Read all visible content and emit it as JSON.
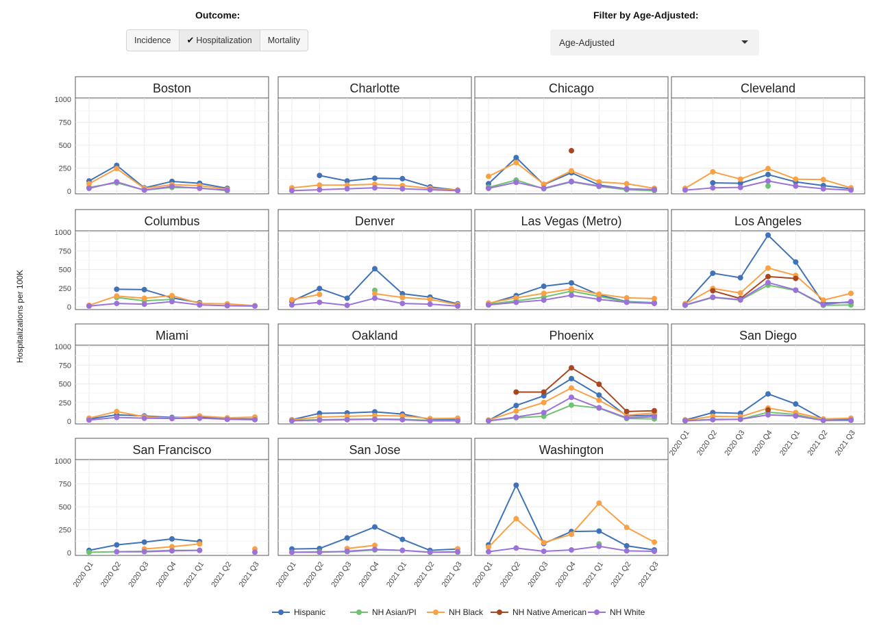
{
  "controls": {
    "outcome_label": "Outcome:",
    "outcome_options": [
      "Incidence",
      "Hospitalization",
      "Mortality"
    ],
    "outcome_selected": "Hospitalization",
    "check_icon": "✔",
    "filter_label": "Filter by Age-Adjusted:",
    "filter_value": "Age-Adjusted"
  },
  "chart_data": {
    "type": "line",
    "ylabel": "Hospitalizations per 100K",
    "ylim": [
      0,
      1000
    ],
    "yticks": [
      0,
      250,
      500,
      750,
      1000
    ],
    "x": [
      "2020 Q1",
      "2020 Q2",
      "2020 Q3",
      "2020 Q4",
      "2021 Q1",
      "2021 Q2",
      "2021 Q3"
    ],
    "grid": true,
    "legend_position": "bottom",
    "series_colors": {
      "Hispanic": "#3f72b8",
      "NH Asian/PI": "#6fc270",
      "NH Black": "#f9a144",
      "NH Native American": "#a8461f",
      "NH White": "#9a72d8"
    },
    "legend": [
      "Hispanic",
      "NH Asian/PI",
      "NH Black",
      "NH Native American",
      "NH White"
    ],
    "panels": [
      {
        "title": "Boston",
        "series": {
          "Hispanic": [
            110,
            280,
            35,
            105,
            85,
            30,
            null
          ],
          "NH Asian/PI": [
            40,
            90,
            10,
            40,
            35,
            5,
            null
          ],
          "NH Black": [
            80,
            245,
            30,
            70,
            60,
            20,
            null
          ],
          "NH Native American": [
            null,
            null,
            null,
            null,
            null,
            null,
            null
          ],
          "NH White": [
            30,
            100,
            10,
            50,
            30,
            10,
            null
          ]
        }
      },
      {
        "title": "Charlotte",
        "series": {
          "Hispanic": [
            null,
            170,
            110,
            140,
            135,
            45,
            10
          ],
          "NH Asian/PI": [
            null,
            null,
            null,
            null,
            null,
            null,
            null
          ],
          "NH Black": [
            35,
            65,
            65,
            75,
            60,
            30,
            10
          ],
          "NH Native American": [
            null,
            null,
            null,
            null,
            null,
            null,
            null
          ],
          "NH White": [
            5,
            15,
            25,
            35,
            25,
            15,
            5
          ]
        }
      },
      {
        "title": "Chicago",
        "series": {
          "Hispanic": [
            80,
            365,
            70,
            200,
            65,
            25,
            15
          ],
          "NH Asian/PI": [
            40,
            120,
            25,
            100,
            50,
            15,
            5
          ],
          "NH Black": [
            160,
            310,
            75,
            220,
            100,
            80,
            30
          ],
          "NH Native American": [
            null,
            null,
            null,
            440,
            null,
            null,
            null
          ],
          "NH White": [
            30,
            95,
            30,
            105,
            55,
            25,
            15
          ]
        }
      },
      {
        "title": "Cleveland",
        "series": {
          "Hispanic": [
            null,
            90,
            85,
            180,
            100,
            60,
            25
          ],
          "NH Asian/PI": [
            null,
            null,
            null,
            55,
            null,
            null,
            null
          ],
          "NH Black": [
            30,
            210,
            130,
            245,
            130,
            125,
            35
          ],
          "NH Native American": [
            null,
            null,
            null,
            null,
            null,
            null,
            null
          ],
          "NH White": [
            10,
            35,
            40,
            110,
            55,
            25,
            10
          ]
        }
      },
      {
        "title": "Columbus",
        "series": {
          "Hispanic": [
            null,
            235,
            230,
            120,
            55,
            null,
            null
          ],
          "NH Asian/PI": [
            null,
            125,
            80,
            100,
            null,
            null,
            null
          ],
          "NH Black": [
            20,
            145,
            115,
            150,
            45,
            40,
            15
          ],
          "NH Native American": [
            null,
            null,
            null,
            null,
            null,
            null,
            null
          ],
          "NH White": [
            10,
            45,
            35,
            70,
            25,
            15,
            10
          ]
        }
      },
      {
        "title": "Denver",
        "series": {
          "Hispanic": [
            75,
            245,
            115,
            510,
            175,
            130,
            40
          ],
          "NH Asian/PI": [
            null,
            null,
            null,
            220,
            null,
            null,
            null
          ],
          "NH Black": [
            95,
            165,
            null,
            175,
            125,
            100,
            30
          ],
          "NH Native American": [
            null,
            null,
            null,
            null,
            null,
            null,
            null
          ],
          "NH White": [
            25,
            60,
            20,
            115,
            45,
            35,
            10
          ]
        }
      },
      {
        "title": "Las Vegas (Metro)",
        "series": {
          "Hispanic": [
            40,
            150,
            275,
            320,
            160,
            70,
            55
          ],
          "NH Asian/PI": [
            35,
            80,
            130,
            210,
            140,
            65,
            50
          ],
          "NH Black": [
            50,
            120,
            180,
            240,
            170,
            120,
            110
          ],
          "NH Native American": [
            null,
            null,
            null,
            null,
            null,
            null,
            null
          ],
          "NH White": [
            25,
            60,
            90,
            155,
            100,
            60,
            45
          ]
        }
      },
      {
        "title": "Los Angeles",
        "series": {
          "Hispanic": [
            40,
            450,
            390,
            960,
            600,
            50,
            60
          ],
          "NH Asian/PI": [
            20,
            125,
            90,
            290,
            220,
            20,
            25
          ],
          "NH Black": [
            40,
            245,
            185,
            520,
            420,
            90,
            180
          ],
          "NH Native American": [
            null,
            215,
            110,
            405,
            380,
            null,
            null
          ],
          "NH White": [
            25,
            130,
            95,
            325,
            225,
            30,
            70
          ]
        }
      },
      {
        "title": "Miami",
        "series": {
          "Hispanic": [
            30,
            85,
            70,
            50,
            55,
            30,
            30
          ],
          "NH Asian/PI": [
            null,
            null,
            null,
            null,
            null,
            null,
            null
          ],
          "NH Black": [
            40,
            130,
            60,
            40,
            70,
            45,
            55
          ],
          "NH Native American": [
            null,
            null,
            null,
            null,
            null,
            null,
            null
          ],
          "NH White": [
            15,
            50,
            40,
            35,
            40,
            25,
            20
          ]
        }
      },
      {
        "title": "Oakland",
        "series": {
          "Hispanic": [
            20,
            105,
            110,
            125,
            95,
            25,
            25
          ],
          "NH Asian/PI": [
            10,
            20,
            25,
            30,
            25,
            10,
            10
          ],
          "NH Black": [
            20,
            55,
            65,
            75,
            70,
            35,
            40
          ],
          "NH Native American": [
            null,
            null,
            null,
            null,
            null,
            null,
            null
          ],
          "NH White": [
            5,
            15,
            20,
            25,
            20,
            5,
            5
          ]
        }
      },
      {
        "title": "Phoenix",
        "series": {
          "Hispanic": [
            10,
            210,
            340,
            570,
            350,
            70,
            80
          ],
          "NH Asian/PI": [
            5,
            45,
            65,
            215,
            175,
            35,
            30
          ],
          "NH Black": [
            15,
            135,
            250,
            445,
            280,
            80,
            110
          ],
          "NH Native American": [
            null,
            390,
            390,
            715,
            495,
            130,
            140
          ],
          "NH White": [
            5,
            55,
            115,
            320,
            180,
            45,
            60
          ]
        }
      },
      {
        "title": "San Diego",
        "series": {
          "Hispanic": [
            15,
            115,
            105,
            365,
            230,
            25,
            25
          ],
          "NH Asian/PI": [
            5,
            25,
            25,
            120,
            90,
            10,
            10
          ],
          "NH Black": [
            10,
            65,
            60,
            175,
            115,
            30,
            40
          ],
          "NH Native American": [
            null,
            null,
            null,
            150,
            null,
            null,
            null
          ],
          "NH White": [
            5,
            20,
            25,
            85,
            70,
            10,
            15
          ]
        }
      },
      {
        "title": "San Francisco",
        "series": {
          "Hispanic": [
            25,
            85,
            115,
            150,
            120,
            null,
            null
          ],
          "NH Asian/PI": [
            5,
            10,
            15,
            25,
            25,
            null,
            null
          ],
          "NH Black": [
            null,
            null,
            40,
            65,
            95,
            null,
            40
          ],
          "NH Native American": [
            null,
            null,
            null,
            null,
            null,
            null,
            null
          ],
          "NH White": [
            null,
            10,
            10,
            20,
            25,
            null,
            5
          ]
        }
      },
      {
        "title": "San Jose",
        "series": {
          "Hispanic": [
            40,
            45,
            160,
            280,
            145,
            25,
            40
          ],
          "NH Asian/PI": [
            5,
            10,
            10,
            30,
            25,
            5,
            5
          ],
          "NH Black": [
            null,
            null,
            45,
            80,
            null,
            null,
            40
          ],
          "NH Native American": [
            null,
            null,
            null,
            null,
            null,
            null,
            null
          ],
          "NH White": [
            5,
            5,
            15,
            35,
            25,
            5,
            10
          ]
        }
      },
      {
        "title": "Washington",
        "series": {
          "Hispanic": [
            85,
            735,
            100,
            230,
            235,
            75,
            30
          ],
          "NH Asian/PI": [
            null,
            null,
            null,
            null,
            95,
            null,
            null
          ],
          "NH Black": [
            60,
            370,
            110,
            200,
            540,
            275,
            115
          ],
          "NH Native American": [
            null,
            null,
            null,
            null,
            null,
            null,
            null
          ],
          "NH White": [
            10,
            50,
            15,
            30,
            70,
            20,
            15
          ]
        }
      }
    ]
  }
}
